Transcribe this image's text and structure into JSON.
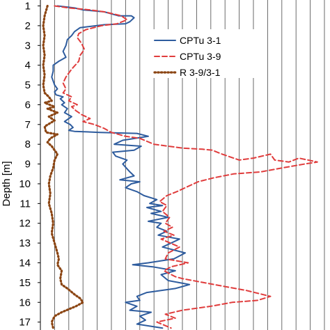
{
  "chart_data": {
    "type": "line",
    "ylabel": "Depth [m]",
    "ylim": [
      0.7,
      17.4
    ],
    "y_ticks": [
      1,
      2,
      3,
      4,
      5,
      6,
      7,
      8,
      9,
      10,
      11,
      12,
      13,
      14,
      15,
      16,
      17
    ],
    "xlim": [
      0,
      20
    ],
    "x_ticks_shown": false,
    "grid": {
      "vertical": true,
      "horizontal": false
    },
    "legend_position": "top-right",
    "series": [
      {
        "name": "CPTu 3-1",
        "color": "#2E5C9E",
        "style": "solid",
        "points": [
          [
            1.2,
            1.0
          ],
          [
            2.4,
            1.1
          ],
          [
            3.0,
            1.2
          ],
          [
            4.5,
            1.3
          ],
          [
            5.5,
            1.5
          ],
          [
            6.4,
            1.5
          ],
          [
            6.6,
            1.6
          ],
          [
            6.3,
            1.8
          ],
          [
            6.0,
            1.9
          ],
          [
            4.5,
            1.95
          ],
          [
            2.8,
            2.1
          ],
          [
            2.4,
            2.3
          ],
          [
            2.2,
            2.5
          ],
          [
            1.9,
            2.7
          ],
          [
            1.8,
            3.0
          ],
          [
            1.6,
            3.3
          ],
          [
            1.8,
            3.6
          ],
          [
            1.3,
            3.8
          ],
          [
            0.9,
            4.0
          ],
          [
            0.9,
            4.3
          ],
          [
            0.8,
            4.6
          ],
          [
            0.9,
            4.8
          ],
          [
            1.0,
            5.0
          ],
          [
            1.2,
            5.2
          ],
          [
            1.0,
            5.35
          ],
          [
            1.1,
            5.5
          ],
          [
            1.6,
            5.6
          ],
          [
            1.4,
            5.7
          ],
          [
            1.7,
            5.9
          ],
          [
            1.5,
            6.0
          ],
          [
            1.9,
            6.2
          ],
          [
            1.7,
            6.4
          ],
          [
            2.2,
            6.6
          ],
          [
            2.0,
            6.7
          ],
          [
            1.7,
            6.85
          ],
          [
            2.1,
            7.0
          ],
          [
            2.3,
            7.15
          ],
          [
            2.0,
            7.3
          ],
          [
            2.4,
            7.35
          ],
          [
            4.2,
            7.4
          ],
          [
            6.8,
            7.45
          ],
          [
            7.6,
            7.6
          ],
          [
            5.8,
            7.8
          ],
          [
            5.2,
            8.0
          ],
          [
            7.1,
            8.1
          ],
          [
            6.6,
            8.3
          ],
          [
            5.1,
            8.4
          ],
          [
            5.3,
            8.6
          ],
          [
            6.1,
            8.8
          ],
          [
            5.8,
            9.0
          ],
          [
            6.3,
            9.4
          ],
          [
            6.6,
            9.6
          ],
          [
            5.6,
            9.8
          ],
          [
            7.0,
            9.9
          ],
          [
            6.4,
            10.0
          ],
          [
            6.0,
            10.2
          ],
          [
            6.8,
            10.4
          ],
          [
            7.3,
            10.6
          ],
          [
            8.2,
            10.8
          ],
          [
            7.7,
            11.0
          ],
          [
            8.6,
            11.1
          ],
          [
            7.5,
            11.2
          ],
          [
            8.5,
            11.4
          ],
          [
            7.8,
            11.5
          ],
          [
            9.0,
            11.7
          ],
          [
            7.6,
            11.9
          ],
          [
            8.5,
            12.0
          ],
          [
            8.2,
            12.2
          ],
          [
            8.9,
            12.4
          ],
          [
            8.3,
            12.6
          ],
          [
            9.8,
            12.8
          ],
          [
            9.2,
            13.0
          ],
          [
            8.6,
            13.2
          ],
          [
            10.2,
            13.5
          ],
          [
            9.4,
            13.8
          ],
          [
            7.6,
            14.0
          ],
          [
            6.5,
            14.1
          ],
          [
            7.9,
            14.2
          ],
          [
            9.5,
            14.4
          ],
          [
            8.5,
            14.6
          ],
          [
            9.0,
            14.9
          ],
          [
            10.5,
            15.1
          ],
          [
            9.5,
            15.3
          ],
          [
            7.5,
            15.5
          ],
          [
            6.8,
            15.7
          ],
          [
            7.0,
            15.9
          ],
          [
            6.0,
            16.0
          ],
          [
            6.8,
            16.2
          ],
          [
            6.3,
            16.4
          ],
          [
            7.8,
            16.5
          ],
          [
            7.0,
            16.7
          ],
          [
            7.4,
            16.9
          ],
          [
            6.8,
            17.1
          ],
          [
            8.6,
            17.3
          ]
        ]
      },
      {
        "name": "CPTu 3-9",
        "color": "#E03C3C",
        "style": "dashed",
        "points": [
          [
            1.0,
            1.0
          ],
          [
            2.0,
            1.1
          ],
          [
            3.5,
            1.2
          ],
          [
            4.5,
            1.3
          ],
          [
            5.7,
            1.5
          ],
          [
            6.1,
            1.7
          ],
          [
            5.4,
            1.9
          ],
          [
            4.3,
            2.0
          ],
          [
            3.2,
            2.2
          ],
          [
            2.7,
            2.4
          ],
          [
            2.6,
            2.6
          ],
          [
            2.9,
            2.9
          ],
          [
            3.1,
            3.2
          ],
          [
            2.8,
            3.5
          ],
          [
            2.7,
            3.8
          ],
          [
            2.2,
            4.2
          ],
          [
            1.8,
            4.6
          ],
          [
            1.6,
            4.9
          ],
          [
            1.8,
            5.2
          ],
          [
            1.6,
            5.4
          ],
          [
            2.2,
            5.6
          ],
          [
            2.0,
            5.8
          ],
          [
            2.6,
            6.0
          ],
          [
            2.2,
            6.1
          ],
          [
            2.5,
            6.3
          ],
          [
            2.9,
            6.5
          ],
          [
            3.5,
            6.7
          ],
          [
            3.0,
            6.85
          ],
          [
            3.8,
            7.0
          ],
          [
            4.5,
            7.2
          ],
          [
            5.0,
            7.4
          ],
          [
            6.0,
            7.6
          ],
          [
            7.0,
            7.7
          ],
          [
            8.0,
            8.0
          ],
          [
            9.0,
            8.1
          ],
          [
            10.1,
            8.2
          ],
          [
            11.4,
            8.25
          ],
          [
            12.1,
            8.3
          ],
          [
            12.8,
            8.5
          ],
          [
            14.0,
            8.8
          ],
          [
            15.0,
            8.7
          ],
          [
            16.2,
            8.5
          ],
          [
            16.5,
            8.8
          ],
          [
            17.5,
            8.9
          ],
          [
            18.2,
            8.7
          ],
          [
            19.5,
            8.9
          ],
          [
            18.6,
            9.0
          ],
          [
            17.0,
            9.2
          ],
          [
            15.5,
            9.4
          ],
          [
            13.6,
            9.5
          ],
          [
            12.2,
            9.7
          ],
          [
            11.1,
            9.9
          ],
          [
            10.2,
            10.2
          ],
          [
            9.6,
            10.4
          ],
          [
            8.9,
            10.6
          ],
          [
            8.4,
            10.9
          ],
          [
            8.9,
            11.1
          ],
          [
            8.6,
            11.4
          ],
          [
            9.1,
            11.7
          ],
          [
            8.8,
            12.0
          ],
          [
            9.3,
            12.2
          ],
          [
            8.7,
            12.4
          ],
          [
            9.4,
            12.6
          ],
          [
            8.5,
            12.8
          ],
          [
            9.8,
            13.2
          ],
          [
            9.0,
            13.5
          ],
          [
            8.8,
            13.8
          ],
          [
            10.4,
            14.0
          ],
          [
            9.2,
            14.2
          ],
          [
            8.7,
            14.4
          ],
          [
            9.5,
            14.7
          ],
          [
            10.0,
            14.8
          ],
          [
            11.5,
            15.0
          ],
          [
            13.0,
            15.2
          ],
          [
            14.5,
            15.4
          ],
          [
            16.2,
            15.7
          ],
          [
            15.3,
            15.9
          ],
          [
            13.5,
            16.0
          ],
          [
            12.0,
            16.2
          ],
          [
            10.0,
            16.4
          ],
          [
            8.8,
            16.6
          ],
          [
            9.5,
            16.8
          ],
          [
            8.2,
            17.0
          ],
          [
            9.2,
            17.3
          ]
        ]
      },
      {
        "name": "R 3-9/3-1",
        "color": "#8B4513",
        "style": "dotted",
        "points": [
          [
            0.5,
            1.0
          ],
          [
            0.3,
            1.5
          ],
          [
            0.2,
            2.0
          ],
          [
            0.3,
            2.5
          ],
          [
            0.2,
            3.0
          ],
          [
            0.3,
            3.5
          ],
          [
            0.2,
            4.0
          ],
          [
            0.3,
            4.5
          ],
          [
            0.2,
            5.0
          ],
          [
            0.3,
            5.4
          ],
          [
            0.6,
            5.6
          ],
          [
            0.8,
            5.8
          ],
          [
            0.3,
            5.9
          ],
          [
            1.0,
            6.1
          ],
          [
            0.5,
            6.2
          ],
          [
            1.2,
            6.4
          ],
          [
            0.6,
            6.6
          ],
          [
            1.0,
            6.8
          ],
          [
            0.3,
            7.1
          ],
          [
            0.4,
            7.4
          ],
          [
            1.2,
            7.5
          ],
          [
            0.7,
            7.7
          ],
          [
            0.5,
            7.9
          ],
          [
            0.8,
            8.1
          ],
          [
            1.0,
            8.3
          ],
          [
            1.2,
            8.5
          ],
          [
            1.0,
            8.8
          ],
          [
            0.9,
            9.2
          ],
          [
            0.7,
            9.6
          ],
          [
            0.6,
            10.0
          ],
          [
            0.7,
            10.5
          ],
          [
            0.6,
            11.0
          ],
          [
            0.8,
            11.5
          ],
          [
            0.9,
            12.0
          ],
          [
            0.8,
            12.5
          ],
          [
            1.0,
            13.0
          ],
          [
            1.2,
            13.5
          ],
          [
            1.3,
            13.8
          ],
          [
            1.2,
            14.1
          ],
          [
            1.5,
            14.4
          ],
          [
            1.4,
            14.8
          ],
          [
            1.5,
            15.1
          ],
          [
            1.9,
            15.3
          ],
          [
            2.4,
            15.6
          ],
          [
            2.8,
            15.8
          ],
          [
            3.0,
            16.0
          ],
          [
            2.5,
            16.2
          ],
          [
            1.5,
            16.5
          ],
          [
            1.0,
            16.7
          ],
          [
            0.8,
            17.0
          ],
          [
            0.9,
            17.3
          ]
        ]
      }
    ]
  }
}
